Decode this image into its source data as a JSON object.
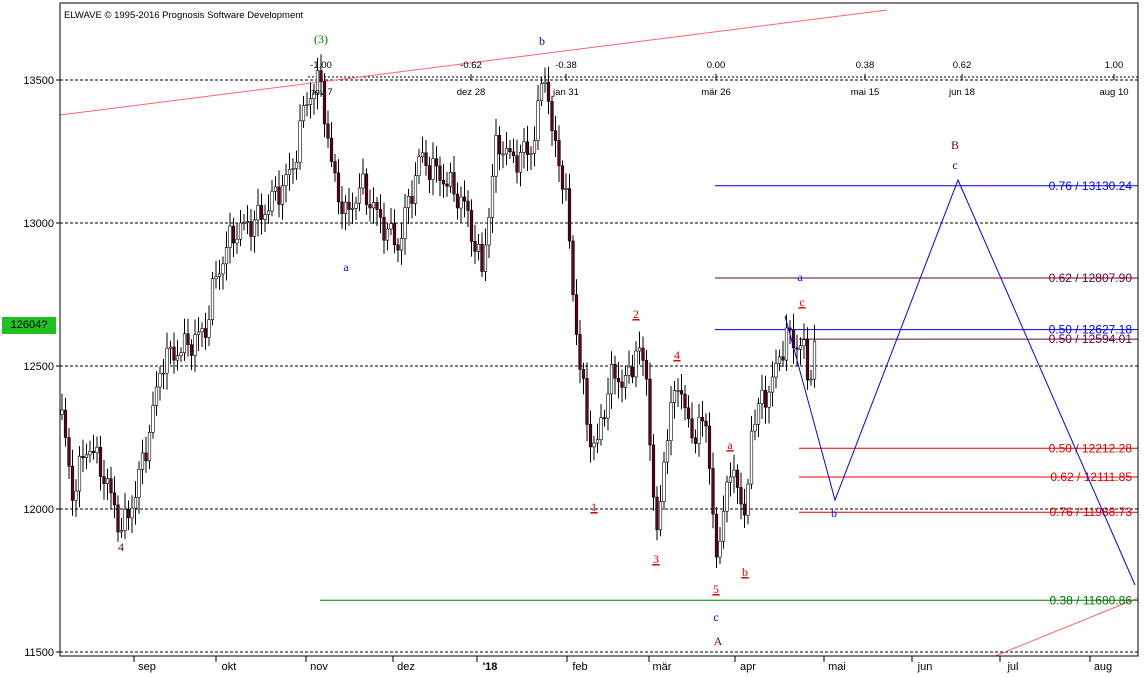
{
  "app": {
    "copyright": "ELWAVE © 1995-2016 Prognosis Software Development"
  },
  "current_price_label": "12604?",
  "colors": {
    "blue": "#0000ff",
    "purple": "#660033",
    "red": "#dd0000",
    "green": "#007700",
    "trend_red": "#ff6666",
    "up_candle": "#ffffff",
    "down_candle": "#660022",
    "price_badge": "#1fc01f"
  },
  "chart_data": {
    "type": "candlestick",
    "title": "",
    "y_ticks": [
      11500,
      12000,
      12500,
      13000,
      13500
    ],
    "ylim": [
      11490,
      13740
    ],
    "x_month_labels": [
      "sep",
      "okt",
      "nov",
      "dez",
      "'18",
      "feb",
      "mär",
      "apr",
      "mai",
      "jun",
      "jul",
      "aug"
    ],
    "time_ratio_labels": [
      {
        "ratio": "-1.00",
        "date": "nov 7"
      },
      {
        "ratio": "-0.62",
        "date": "dez 28"
      },
      {
        "ratio": "-0.38",
        "date": "jan 31"
      },
      {
        "ratio": "0.00",
        "date": "mär 26"
      },
      {
        "ratio": "0.38",
        "date": "mai 15"
      },
      {
        "ratio": "0.62",
        "date": "jun 18"
      },
      {
        "ratio": "1.00",
        "date": "aug 10"
      }
    ],
    "fib_levels": [
      {
        "label": "0.76 / 13130.24",
        "value": 13130.24,
        "color": "#0000ff"
      },
      {
        "label": "0.62 / 12807.90",
        "value": 12807.9,
        "color": "#660033"
      },
      {
        "label": "0.50 / 12627.18",
        "value": 12627.18,
        "color": "#0000ff"
      },
      {
        "label": "0.50 / 12594.01",
        "value": 12594.01,
        "color": "#660033"
      },
      {
        "label": "0.50 / 12212.28",
        "value": 12212.28,
        "color": "#dd0000"
      },
      {
        "label": "0.62 / 12111.85",
        "value": 12111.85,
        "color": "#dd0000"
      },
      {
        "label": "0.76 / 11988.73",
        "value": 11988.73,
        "color": "#dd0000"
      },
      {
        "label": "0.38 / 11680.86",
        "value": 11680.86,
        "color": "#007700"
      }
    ],
    "wave_labels": [
      {
        "text": "4",
        "color": "#660033",
        "underline": false
      },
      {
        "text": "(3)",
        "color": "#007700",
        "underline": false
      },
      {
        "text": "a",
        "color": "#0000ff",
        "underline": false
      },
      {
        "text": "b",
        "color": "#0000ff",
        "underline": false
      },
      {
        "text": "1",
        "color": "#dd0000",
        "underline": true
      },
      {
        "text": "2",
        "color": "#dd0000",
        "underline": true
      },
      {
        "text": "3",
        "color": "#dd0000",
        "underline": true
      },
      {
        "text": "4",
        "color": "#dd0000",
        "underline": true
      },
      {
        "text": "5",
        "color": "#dd0000",
        "underline": true
      },
      {
        "text": "c",
        "color": "#0000ff",
        "underline": false
      },
      {
        "text": "A",
        "color": "#660033",
        "underline": false
      },
      {
        "text": "a",
        "color": "#dd0000",
        "underline": true
      },
      {
        "text": "b",
        "color": "#dd0000",
        "underline": true
      },
      {
        "text": "c",
        "color": "#dd0000",
        "underline": true
      },
      {
        "text": "a",
        "color": "#0000ff",
        "underline": false
      },
      {
        "text": "b",
        "color": "#0000ff",
        "underline": false
      },
      {
        "text": "c",
        "color": "#0000ff",
        "underline": false
      },
      {
        "text": "B",
        "color": "#660033",
        "underline": false
      }
    ]
  }
}
